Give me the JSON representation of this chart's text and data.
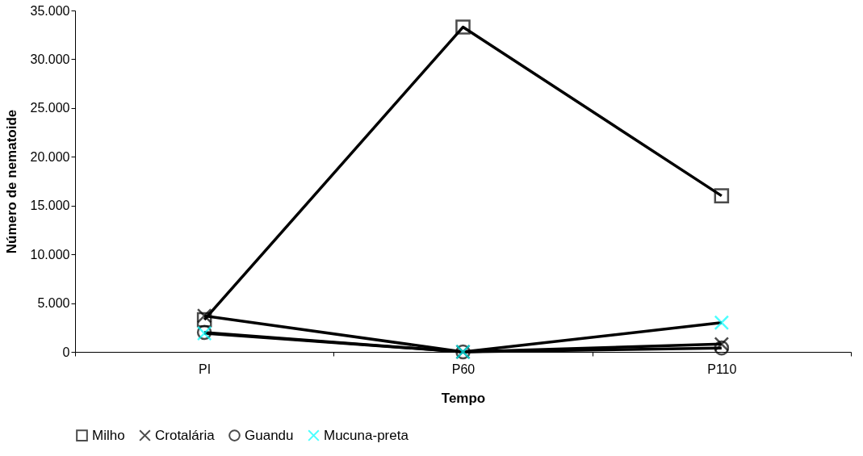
{
  "chart_data": {
    "type": "line",
    "xlabel": "Tempo",
    "ylabel": "Número de nematoide",
    "categories": [
      "PI",
      "P60",
      "P110"
    ],
    "series": [
      {
        "name": "Milho",
        "color": "#000000",
        "marker": "square",
        "values": [
          3300,
          33300,
          16000
        ]
      },
      {
        "name": "Crotalária",
        "color": "#000000",
        "marker": "cross",
        "values": [
          3700,
          0,
          800
        ]
      },
      {
        "name": "Guandu",
        "color": "#000000",
        "marker": "circle",
        "values": [
          2000,
          0,
          400
        ]
      },
      {
        "name": "Mucuna-preta",
        "color": "#00ffff",
        "marker": "cross",
        "values": [
          1900,
          0,
          3000
        ]
      }
    ],
    "ylim": [
      0,
      35000
    ],
    "yticks": [
      {
        "value": 0,
        "label": "0"
      },
      {
        "value": 5000,
        "label": "5.000"
      },
      {
        "value": 10000,
        "label": "10.000"
      },
      {
        "value": 15000,
        "label": "15.000"
      },
      {
        "value": 20000,
        "label": "20.000"
      },
      {
        "value": 25000,
        "label": "25.000"
      },
      {
        "value": 30000,
        "label": "30.000"
      },
      {
        "value": 35000,
        "label": "35.000"
      }
    ],
    "grid": false,
    "legend": "bottom",
    "line_style": "solid"
  }
}
